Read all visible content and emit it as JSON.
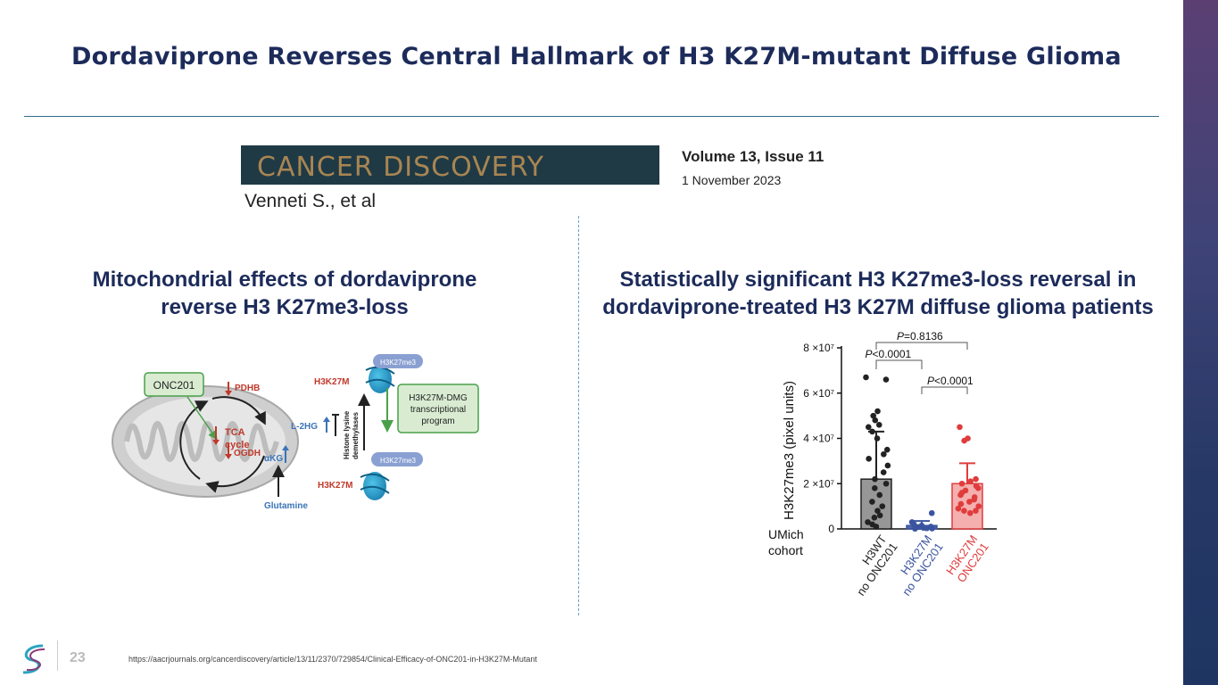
{
  "slide": {
    "title": "Dordaviprone Reverses Central Hallmark of H3 K27M-mutant Diffuse Glioma",
    "page_number": "23",
    "source_url": "https://aacrjournals.org/cancerdiscovery/article/13/11/2370/729854/Clinical-Efficacy-of-ONC201-in-H3K27M-Mutant"
  },
  "citation": {
    "journal": "CANCER DISCOVERY",
    "volume": "Volume 13, Issue 11",
    "date": "1 November 2023",
    "authors": "Venneti S., et al"
  },
  "left_panel": {
    "heading_line1": "Mitochondrial effects of dordaviprone",
    "heading_line2": "reverse H3 K27me3-loss"
  },
  "right_panel": {
    "heading_line1": "Statistically significant H3 K27me3-loss reversal in",
    "heading_line2": "dordaviprone-treated H3 K27M diffuse glioma patients"
  },
  "diagram": {
    "onc201": "ONC201",
    "pdhb": "PDHB",
    "tca_line1": "TCA",
    "tca_line2": "cycle",
    "ogdh": "OGDH",
    "akg": "αKG",
    "l2hg": "L-2HG",
    "glutamine": "Glutamine",
    "h3k27m_top": "H3K27M",
    "h3k27m_bottom": "H3K27M",
    "h3k27me3_top": "H3K27me3",
    "h3k27me3_bottom": "H3K27me3",
    "demethylases_line1": "Histone lysine",
    "demethylases_line2": "demethylases",
    "program_line1": "H3K27M-DMG",
    "program_line2": "transcriptional",
    "program_line3": "program",
    "colors": {
      "green": "#4aa04a",
      "red": "#c0392b",
      "blue": "#3a74b8",
      "mito": "#a8a8a8"
    }
  },
  "chart_data": {
    "type": "bar",
    "ylabel": "H3K27me3 (pixel units)",
    "yticks": [
      "0",
      "2 ×10⁷",
      "4 ×10⁷",
      "6 ×10⁷",
      "8 ×10⁷"
    ],
    "ylim": [
      0,
      80000000
    ],
    "cohort_label_line1": "UMich",
    "cohort_label_line2": "cohort",
    "groups": [
      {
        "line1": "H3WT",
        "line2": "no ONC201",
        "color": "#222222",
        "fill": "#8c8c8c",
        "mean": 22000000,
        "error_upper": 43000000,
        "points": [
          66000000,
          67000000,
          52000000,
          50000000,
          48000000,
          46000000,
          45000000,
          43000000,
          40000000,
          35000000,
          33000000,
          31000000,
          28000000,
          25000000,
          22000000,
          20000000,
          18000000,
          15000000,
          12000000,
          10000000,
          8000000,
          6000000,
          5000000,
          3000000,
          2000000,
          1000000
        ]
      },
      {
        "line1": "H3K27M",
        "line2": "no ONC201",
        "color": "#3a54a0",
        "fill": "#3a54a0",
        "mean": 1500000,
        "error_upper": 3500000,
        "points": [
          7000000,
          3000000,
          2000000,
          1500000,
          1000000,
          800000,
          500000,
          300000,
          200000,
          100000
        ]
      },
      {
        "line1": "H3K27M",
        "line2": "ONC201",
        "color": "#e03c3c",
        "fill": "#f2a1a1",
        "mean": 20000000,
        "error_upper": 29000000,
        "points": [
          45000000,
          40000000,
          39000000,
          22000000,
          21000000,
          20000000,
          19000000,
          18000000,
          17000000,
          16000000,
          15000000,
          14000000,
          13000000,
          12000000,
          11000000,
          10000000,
          9000000,
          8000000,
          8000000,
          7000000
        ]
      }
    ],
    "annotations": [
      {
        "prefix": "P",
        "value": "=0.8136",
        "from": 0,
        "to": 2
      },
      {
        "prefix": "P",
        "value": "<0.0001",
        "from": 0,
        "to": 1
      },
      {
        "prefix": "P",
        "value": "<0.0001",
        "from": 1,
        "to": 2
      }
    ]
  }
}
